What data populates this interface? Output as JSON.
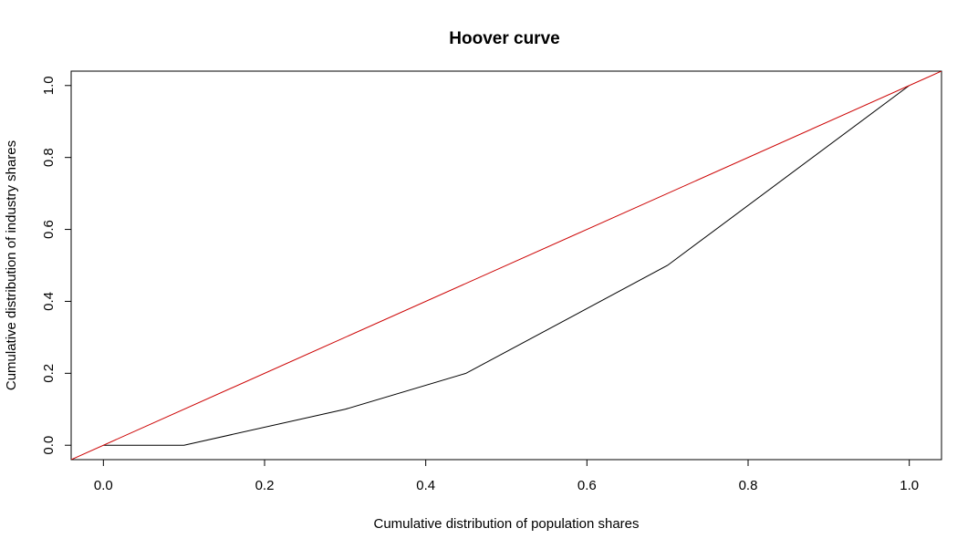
{
  "chart_data": {
    "type": "line",
    "title": "Hoover curve",
    "xlabel": "Cumulative distribution of population shares",
    "ylabel": "Cumulative distribution of industry shares",
    "xlim": [
      -0.04,
      1.04
    ],
    "ylim": [
      -0.04,
      1.04
    ],
    "x_ticks": [
      "0.0",
      "0.2",
      "0.4",
      "0.6",
      "0.8",
      "1.0"
    ],
    "y_ticks": [
      "0.0",
      "0.2",
      "0.4",
      "0.6",
      "0.8",
      "1.0"
    ],
    "grid": false,
    "series": [
      {
        "color": "#000000",
        "x": [
          0.0,
          0.1,
          0.3,
          0.45,
          0.7,
          1.0
        ],
        "y": [
          0.0,
          0.0,
          0.1,
          0.2,
          0.5,
          1.0
        ]
      },
      {
        "color": "#cc0000",
        "x": [
          -0.04,
          1.04
        ],
        "y": [
          -0.04,
          1.04
        ]
      }
    ]
  }
}
